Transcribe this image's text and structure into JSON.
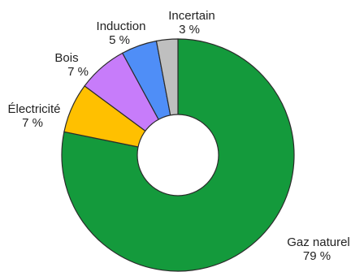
{
  "chart_data": {
    "type": "pie",
    "donut": true,
    "categories": [
      "Gaz naturel",
      "Électricité",
      "Bois",
      "Induction",
      "Incertain"
    ],
    "values": [
      79,
      7,
      7,
      5,
      3
    ],
    "value_labels": [
      "79 %",
      "7 %",
      "7 %",
      "5 %",
      "3 %"
    ],
    "colors": [
      "#149a3c",
      "#ffc000",
      "#c77cfa",
      "#4f8ef7",
      "#bfbfbf"
    ],
    "start": "top",
    "direction": "clockwise",
    "title": "",
    "legend": "none"
  }
}
